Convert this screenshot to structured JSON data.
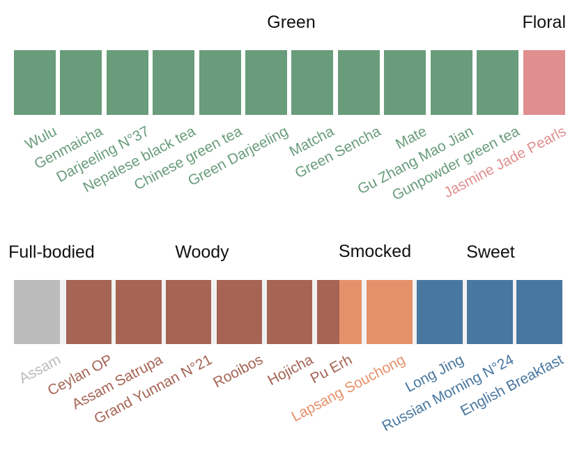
{
  "colors": {
    "green": "#699c7b",
    "floral": "#e08f8f",
    "fullbodied": "#bbbbbb",
    "woody": "#a56454",
    "smoked": "#e4916a",
    "sweet": "#4877a0"
  },
  "rows": [
    {
      "groups": [
        {
          "key": "green",
          "title": "Green",
          "color": "#699c7b"
        },
        {
          "key": "floral",
          "title": "Floral",
          "color": "#e08f8f"
        }
      ],
      "teas": [
        {
          "name": "Wulu",
          "group": "green"
        },
        {
          "name": "Genmaicha",
          "group": "green"
        },
        {
          "name": "Darjeeling N°37",
          "group": "green"
        },
        {
          "name": "Nepalese black tea",
          "group": "green"
        },
        {
          "name": "Chinese green tea",
          "group": "green"
        },
        {
          "name": "Green Darjeeling",
          "group": "green"
        },
        {
          "name": "Matcha",
          "group": "green"
        },
        {
          "name": "Green Sencha",
          "group": "green"
        },
        {
          "name": "Mate",
          "group": "green"
        },
        {
          "name": "Gu Zhang Mao Jian",
          "group": "green"
        },
        {
          "name": "Gunpowder green tea",
          "group": "green"
        },
        {
          "name": "Jasmine Jade Pearls",
          "group": "floral"
        }
      ]
    },
    {
      "groups": [
        {
          "key": "fullbodied",
          "title": "Full-bodied",
          "color": "#bbbbbb"
        },
        {
          "key": "woody",
          "title": "Woody",
          "color": "#a56454"
        },
        {
          "key": "smoked",
          "title": "Smocked",
          "color": "#e4916a"
        },
        {
          "key": "sweet",
          "title": "Sweet",
          "color": "#4877a0"
        }
      ],
      "teas": [
        {
          "name": "Assam",
          "group": "fullbodied"
        },
        {
          "name": "Ceylan OP",
          "group": "woody"
        },
        {
          "name": "Assam Satrupa",
          "group": "woody"
        },
        {
          "name": "Grand Yunnan N°21",
          "group": "woody"
        },
        {
          "name": "Rooibos",
          "group": "woody"
        },
        {
          "name": "Hojicha",
          "group": "woody"
        },
        {
          "name": "Pu Erh",
          "group": "woody"
        },
        {
          "name": "Lapsang Souchong",
          "group": "smoked"
        },
        {
          "name": "Long Jing",
          "group": "sweet"
        },
        {
          "name": "Russian Morning N°24",
          "group": "sweet"
        },
        {
          "name": "English Breakfast",
          "group": "sweet"
        }
      ]
    }
  ]
}
